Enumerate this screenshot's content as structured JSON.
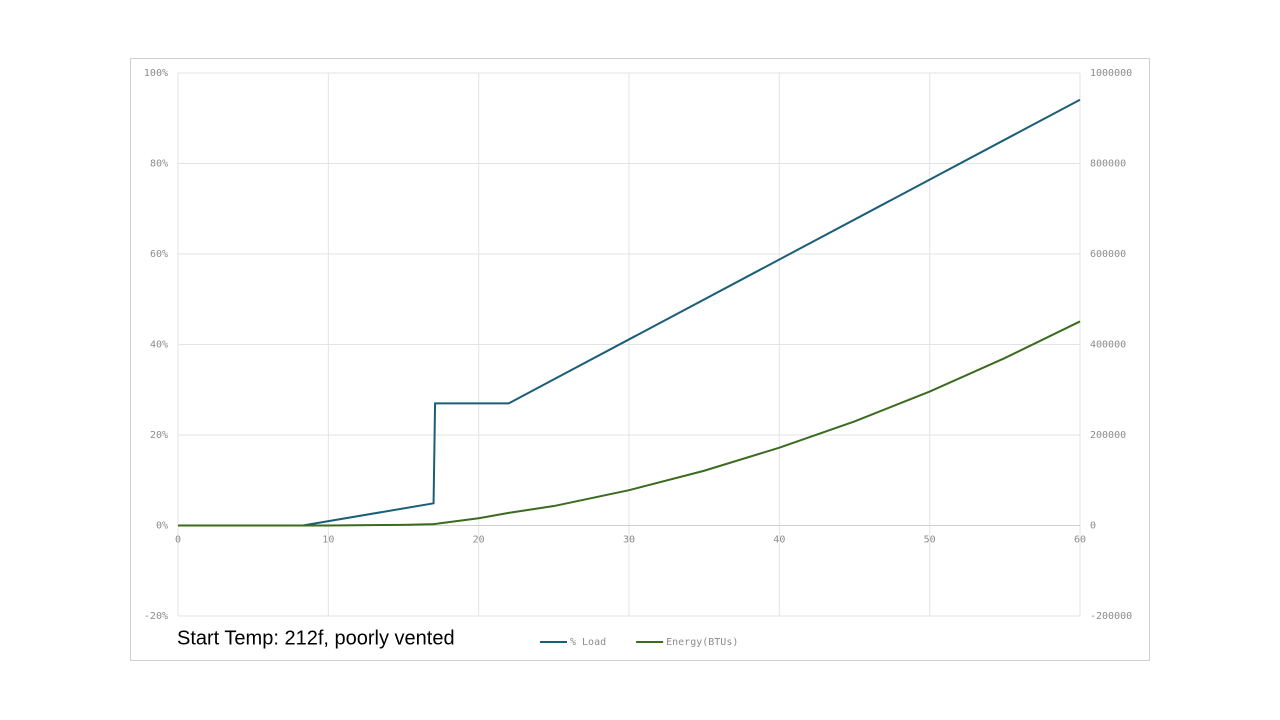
{
  "chart_data": {
    "type": "line",
    "annotation": "Start Temp: 212f, poorly  vented",
    "xlim": [
      0,
      60
    ],
    "xticks": [
      0,
      10,
      20,
      30,
      40,
      50,
      60
    ],
    "ylim": [
      -20,
      100
    ],
    "yticks": [
      {
        "value": -20,
        "label": "-20%"
      },
      {
        "value": 0,
        "label": "0%"
      },
      {
        "value": 20,
        "label": "20%"
      },
      {
        "value": 40,
        "label": "40%"
      },
      {
        "value": 60,
        "label": "60%"
      },
      {
        "value": 80,
        "label": "80%"
      },
      {
        "value": 100,
        "label": "100%"
      }
    ],
    "y2lim": [
      -200000,
      1000000
    ],
    "y2ticks": [
      -200000,
      0,
      200000,
      400000,
      600000,
      800000,
      1000000
    ],
    "grid": true,
    "legend": "bottom",
    "series": [
      {
        "name": "% Load",
        "color": "#1b5e78",
        "x": [
          0,
          8.3,
          17,
          17.1,
          22,
          60
        ],
        "values": [
          0,
          0,
          4.9,
          27,
          27,
          94.1
        ]
      },
      {
        "name": "Energy(BTUs)",
        "color": "#3a6b1f",
        "axis": "y2",
        "x": [
          0,
          10,
          15,
          17,
          20,
          22,
          25,
          30,
          35,
          40,
          45,
          50,
          55,
          60
        ],
        "values": [
          0,
          0,
          1500,
          3000,
          16000,
          28000,
          43000,
          78000,
          121000,
          172000,
          230000,
          296000,
          370000,
          451000
        ]
      }
    ]
  }
}
